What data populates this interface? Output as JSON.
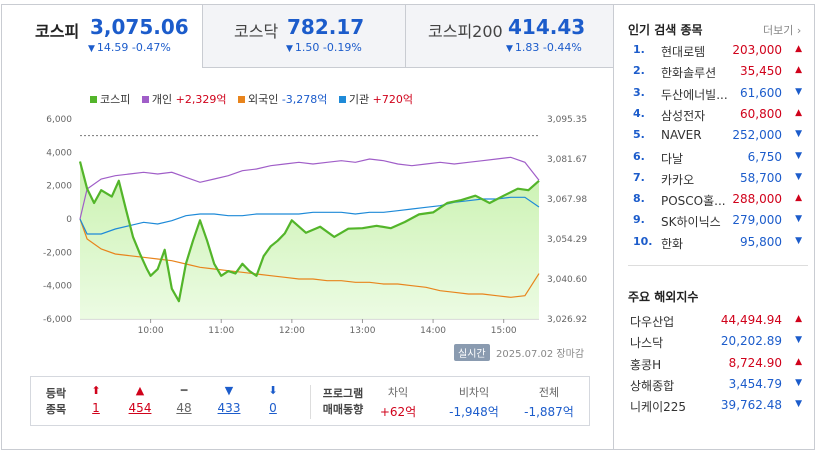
{
  "tabs": [
    {
      "name": "코스피",
      "value": "3,075.06",
      "change": "14.59 -0.47%",
      "dir": "down"
    },
    {
      "name": "코스닥",
      "value": "782.17",
      "change": "1.50 -0.19%",
      "dir": "down"
    },
    {
      "name": "코스피200",
      "value": "414.43",
      "change": "1.83 -0.44%",
      "dir": "down"
    }
  ],
  "legend": [
    {
      "name": "코스피",
      "value": "",
      "color": "#53b52a"
    },
    {
      "name": "개인",
      "value": "+2,329억",
      "color": "#a05ec8"
    },
    {
      "name": "외국인",
      "value": "-3,278억",
      "color": "#e8841c"
    },
    {
      "name": "기관",
      "value": "+720억",
      "color": "#1e8ad8"
    }
  ],
  "chart_data": {
    "type": "line",
    "y_left_ticks": [
      "6,000",
      "4,000",
      "2,000",
      "0",
      "-2,000",
      "-4,000",
      "-6,000"
    ],
    "y_left_range": [
      -6000,
      6000
    ],
    "y_right_ticks": [
      "3,095.35",
      "3,081.67",
      "3,067.98",
      "3,054.29",
      "3,040.60",
      "3,026.92"
    ],
    "y_right_range": [
      3026.92,
      3095.35
    ],
    "x_ticks": [
      "10:00",
      "11:00",
      "12:00",
      "13:00",
      "14:00",
      "15:00"
    ],
    "reference_line": 3089.65,
    "series": [
      {
        "name": "코스피",
        "axis": "right",
        "x": [
          9.0,
          9.1,
          9.2,
          9.3,
          9.45,
          9.55,
          9.65,
          9.75,
          9.85,
          9.95,
          10.0,
          10.1,
          10.2,
          10.3,
          10.4,
          10.5,
          10.6,
          10.7,
          10.8,
          10.9,
          11.0,
          11.1,
          11.2,
          11.3,
          11.4,
          11.5,
          11.6,
          11.7,
          11.8,
          11.9,
          12.0,
          12.2,
          12.4,
          12.6,
          12.8,
          13.0,
          13.2,
          13.4,
          13.6,
          13.8,
          14.0,
          14.2,
          14.4,
          14.6,
          14.8,
          15.0,
          15.2,
          15.35,
          15.5
        ],
        "values": [
          3080.8,
          3071.5,
          3066.6,
          3071.0,
          3068.8,
          3074.2,
          3064.5,
          3055.0,
          3049.2,
          3043.9,
          3041.7,
          3044.0,
          3050.6,
          3037.3,
          3033.0,
          3045.8,
          3053.7,
          3060.7,
          3053.7,
          3045.8,
          3041.7,
          3043.3,
          3042.5,
          3045.8,
          3043.3,
          3041.7,
          3048.4,
          3051.8,
          3053.7,
          3056.2,
          3060.7,
          3056.4,
          3058.5,
          3055.0,
          3057.8,
          3058.0,
          3058.8,
          3058.0,
          3060.1,
          3062.7,
          3063.4,
          3066.6,
          3067.6,
          3069.1,
          3066.6,
          3069.1,
          3071.5,
          3071.0,
          3074.2
        ]
      },
      {
        "name": "개인",
        "axis": "left",
        "x": [
          9.0,
          9.1,
          9.3,
          9.5,
          9.7,
          9.9,
          10.1,
          10.3,
          10.5,
          10.7,
          10.9,
          11.1,
          11.3,
          11.5,
          11.7,
          11.9,
          12.1,
          12.3,
          12.5,
          12.7,
          12.9,
          13.1,
          13.3,
          13.5,
          13.7,
          13.9,
          14.1,
          14.3,
          14.5,
          14.7,
          14.9,
          15.1,
          15.3,
          15.5
        ],
        "values": [
          0,
          1800,
          2400,
          2600,
          2700,
          2800,
          2700,
          2800,
          2500,
          2200,
          2400,
          2600,
          2900,
          3000,
          3200,
          3300,
          3400,
          3300,
          3400,
          3500,
          3400,
          3600,
          3500,
          3300,
          3200,
          3300,
          3400,
          3300,
          3400,
          3500,
          3600,
          3700,
          3400,
          2329
        ]
      },
      {
        "name": "외국인",
        "axis": "left",
        "x": [
          9.0,
          9.1,
          9.3,
          9.5,
          9.7,
          9.9,
          10.1,
          10.3,
          10.5,
          10.7,
          10.9,
          11.1,
          11.3,
          11.5,
          11.7,
          11.9,
          12.1,
          12.3,
          12.5,
          12.7,
          12.9,
          13.1,
          13.3,
          13.5,
          13.7,
          13.9,
          14.1,
          14.3,
          14.5,
          14.7,
          14.9,
          15.1,
          15.3,
          15.5
        ],
        "values": [
          0,
          -1200,
          -1800,
          -2100,
          -2200,
          -2300,
          -2400,
          -2500,
          -2700,
          -2900,
          -3000,
          -3100,
          -3200,
          -3300,
          -3400,
          -3500,
          -3600,
          -3600,
          -3700,
          -3700,
          -3800,
          -3800,
          -3900,
          -3900,
          -4000,
          -4100,
          -4300,
          -4400,
          -4500,
          -4500,
          -4600,
          -4700,
          -4600,
          -3278
        ]
      },
      {
        "name": "기관",
        "axis": "left",
        "x": [
          9.0,
          9.1,
          9.3,
          9.5,
          9.7,
          9.9,
          10.1,
          10.3,
          10.5,
          10.7,
          10.9,
          11.1,
          11.3,
          11.5,
          11.7,
          11.9,
          12.1,
          12.3,
          12.5,
          12.7,
          12.9,
          13.1,
          13.3,
          13.5,
          13.7,
          13.9,
          14.1,
          14.3,
          14.5,
          14.7,
          14.9,
          15.1,
          15.3,
          15.5
        ],
        "values": [
          0,
          -900,
          -900,
          -600,
          -400,
          -200,
          -300,
          -100,
          200,
          300,
          300,
          200,
          200,
          300,
          300,
          300,
          300,
          400,
          400,
          400,
          300,
          400,
          400,
          500,
          600,
          700,
          800,
          1000,
          1100,
          1200,
          1200,
          1300,
          1300,
          720
        ]
      }
    ]
  },
  "status": {
    "live": "실시간",
    "date": "2025.07.02 장마감"
  },
  "breadth": {
    "label_line1": "등락",
    "label_line2": "종목",
    "items": [
      {
        "icon": "⬆",
        "count": "1",
        "color": "red"
      },
      {
        "icon": "▲",
        "count": "454",
        "color": "red"
      },
      {
        "icon": "━",
        "count": "48",
        "color": "gray"
      },
      {
        "icon": "▼",
        "count": "433",
        "color": "blue"
      },
      {
        "icon": "⬇",
        "count": "0",
        "color": "blue"
      }
    ]
  },
  "program": {
    "label_line1": "프로그램",
    "label_line2": "매매동향",
    "items": [
      {
        "head": "차익",
        "value": "+62억",
        "color": "red"
      },
      {
        "head": "비차익",
        "value": "-1,948억",
        "color": "blue"
      },
      {
        "head": "전체",
        "value": "-1,887억",
        "color": "blue"
      }
    ]
  },
  "popular": {
    "title": "인기 검색 종목",
    "more": "더보기",
    "items": [
      {
        "rank": "1.",
        "name": "현대로템",
        "price": "203,000",
        "dir": "▲",
        "color": "red"
      },
      {
        "rank": "2.",
        "name": "한화솔루션",
        "price": "35,450",
        "dir": "▲",
        "color": "red"
      },
      {
        "rank": "3.",
        "name": "두산에너빌...",
        "price": "61,600",
        "dir": "▼",
        "color": "blue"
      },
      {
        "rank": "4.",
        "name": "삼성전자",
        "price": "60,800",
        "dir": "▲",
        "color": "red"
      },
      {
        "rank": "5.",
        "name": "NAVER",
        "price": "252,000",
        "dir": "▼",
        "color": "blue"
      },
      {
        "rank": "6.",
        "name": "다날",
        "price": "6,750",
        "dir": "▼",
        "color": "blue"
      },
      {
        "rank": "7.",
        "name": "카카오",
        "price": "58,700",
        "dir": "▼",
        "color": "blue"
      },
      {
        "rank": "8.",
        "name": "POSCO홀...",
        "price": "288,000",
        "dir": "▲",
        "color": "red"
      },
      {
        "rank": "9.",
        "name": "SK하이닉스",
        "price": "279,000",
        "dir": "▼",
        "color": "blue"
      },
      {
        "rank": "10.",
        "name": "한화",
        "price": "95,800",
        "dir": "▼",
        "color": "blue"
      }
    ]
  },
  "world": {
    "title": "주요 해외지수",
    "items": [
      {
        "name": "다우산업",
        "price": "44,494.94",
        "dir": "▲",
        "color": "red"
      },
      {
        "name": "나스닥",
        "price": "20,202.89",
        "dir": "▼",
        "color": "blue"
      },
      {
        "name": "홍콩H",
        "price": "8,724.90",
        "dir": "▲",
        "color": "red"
      },
      {
        "name": "상해종합",
        "price": "3,454.79",
        "dir": "▼",
        "color": "blue"
      },
      {
        "name": "니케이225",
        "price": "39,762.48",
        "dir": "▼",
        "color": "blue"
      }
    ]
  }
}
